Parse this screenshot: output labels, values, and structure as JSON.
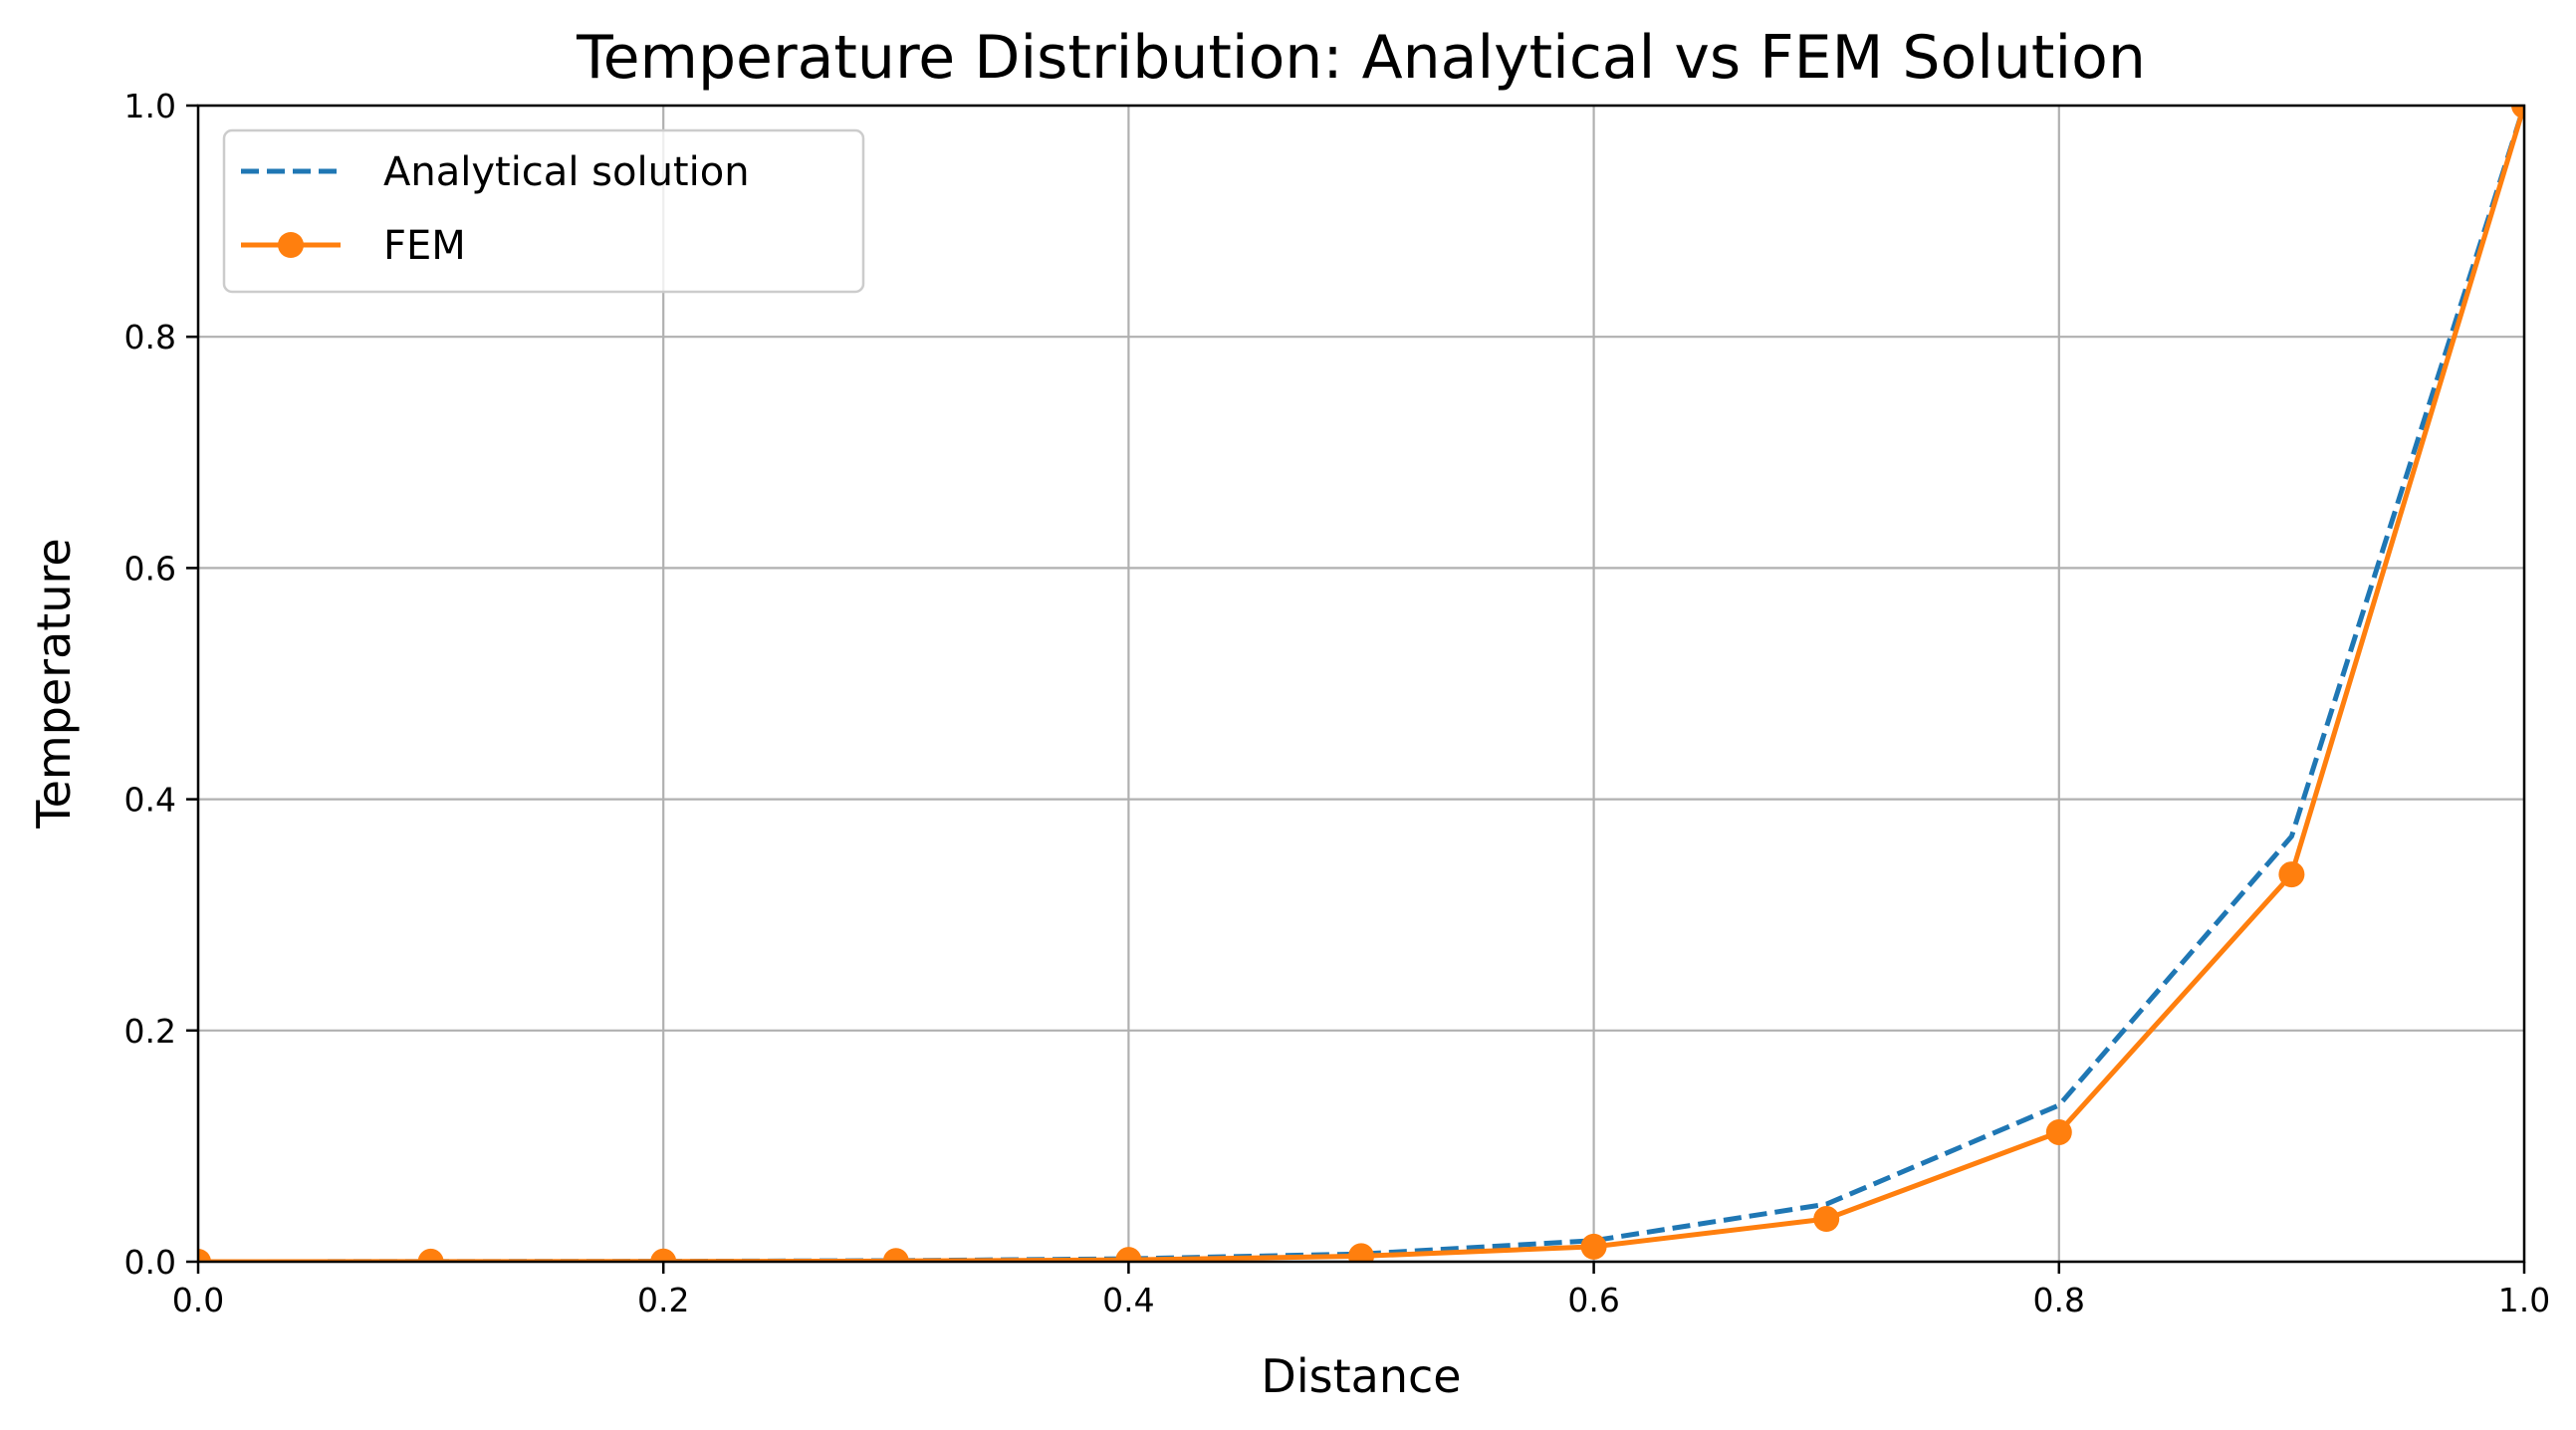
{
  "chart_data": {
    "type": "line",
    "title": "Temperature Distribution: Analytical vs FEM Solution",
    "xlabel": "Distance",
    "ylabel": "Temperature",
    "xlim": [
      0.0,
      1.0
    ],
    "ylim": [
      0.0,
      1.0
    ],
    "xticks": [
      "0.0",
      "0.2",
      "0.4",
      "0.6",
      "0.8",
      "1.0"
    ],
    "yticks": [
      "0.0",
      "0.2",
      "0.4",
      "0.6",
      "0.8",
      "1.0"
    ],
    "grid": true,
    "legend_position": "upper left",
    "x": [
      0.0,
      0.1,
      0.2,
      0.3,
      0.4,
      0.5,
      0.6,
      0.7,
      0.8,
      0.9,
      1.0
    ],
    "series": [
      {
        "name": "Analytical solution",
        "style": "dashed",
        "color": "#1f77b4",
        "marker": "none",
        "values": [
          0.0,
          0.0001,
          0.0003,
          0.0009,
          0.0025,
          0.0067,
          0.0183,
          0.0498,
          0.1353,
          0.3679,
          1.0
        ]
      },
      {
        "name": "FEM",
        "style": "solid",
        "color": "#ff7f0e",
        "marker": "circle",
        "values": [
          0.0,
          0.0001,
          0.0002,
          0.0006,
          0.0016,
          0.0048,
          0.013,
          0.037,
          0.112,
          0.335,
          1.0
        ]
      }
    ]
  }
}
